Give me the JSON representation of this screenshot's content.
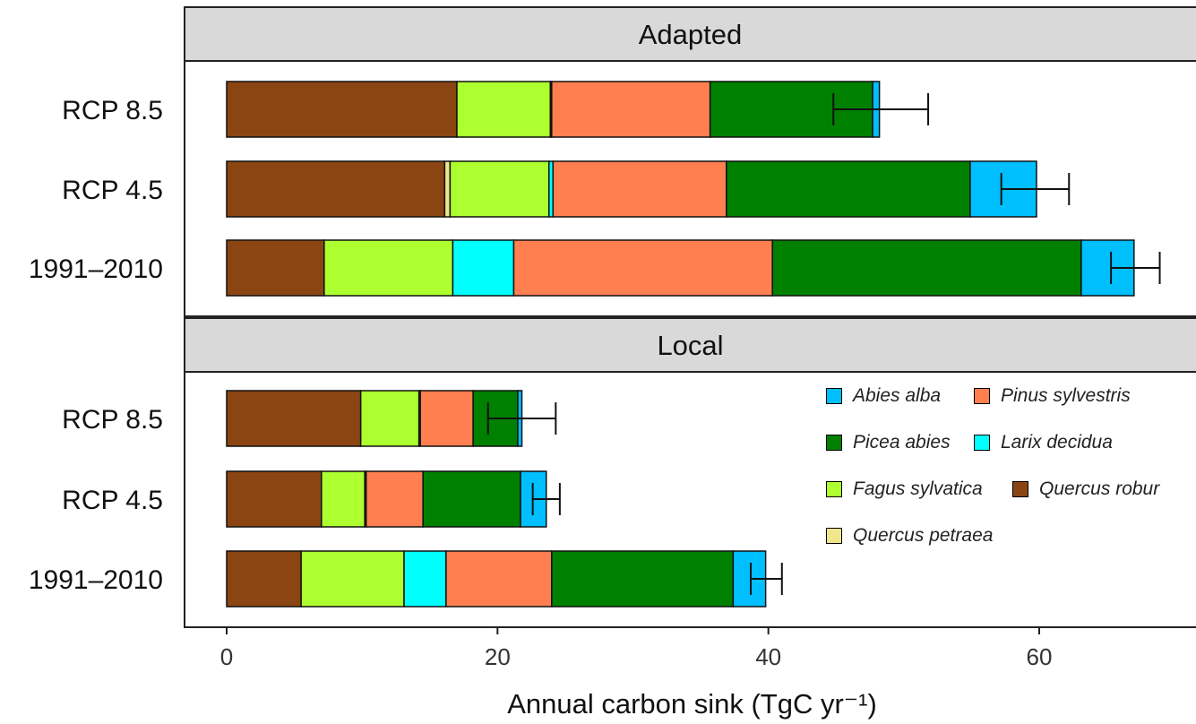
{
  "chart_data": {
    "type": "bar",
    "orientation": "horizontal",
    "stacked": true,
    "xlabel": "Annual carbon sink (TgC yr⁻¹)",
    "xlim": [
      -3,
      71
    ],
    "xticks": [
      0,
      20,
      40,
      60
    ],
    "grid": false,
    "legend_position": "right, inside lower panel",
    "species": [
      {
        "name": "Quercus robur",
        "color": "#8B4513"
      },
      {
        "name": "Quercus petraea",
        "color": "#F0E68C"
      },
      {
        "name": "Fagus sylvatica",
        "color": "#ADFF2F"
      },
      {
        "name": "Larix decidua",
        "color": "#00FFFF"
      },
      {
        "name": "Pinus sylvestris",
        "color": "#FF7F50"
      },
      {
        "name": "Picea abies",
        "color": "#008000"
      },
      {
        "name": "Abies alba",
        "color": "#00BFFF"
      }
    ],
    "legend_order": [
      "Abies alba",
      "Pinus sylvestris",
      "Picea abies",
      "Larix decidua",
      "Fagus sylvatica",
      "Quercus robur",
      "Quercus petraea"
    ],
    "panels": [
      {
        "title": "Adapted",
        "bars": [
          {
            "label": "RCP 8.5",
            "segments": {
              "Quercus robur": 17.0,
              "Quercus petraea": 0.0,
              "Fagus sylvatica": 6.9,
              "Larix decidua": 0.1,
              "Pinus sylvestris": 11.7,
              "Picea abies": 12.0,
              "Abies alba": 0.5
            },
            "total": 48.2,
            "error": [
              44.8,
              51.8
            ]
          },
          {
            "label": "RCP 4.5",
            "segments": {
              "Quercus robur": 16.1,
              "Quercus petraea": 0.4,
              "Fagus sylvatica": 7.3,
              "Larix decidua": 0.3,
              "Pinus sylvestris": 12.8,
              "Picea abies": 18.0,
              "Abies alba": 4.9
            },
            "total": 59.8,
            "error": [
              57.2,
              62.2
            ]
          },
          {
            "label": "1991–2010",
            "segments": {
              "Quercus robur": 7.2,
              "Quercus petraea": 0.0,
              "Fagus sylvatica": 9.5,
              "Larix decidua": 4.5,
              "Pinus sylvestris": 19.1,
              "Picea abies": 22.8,
              "Abies alba": 3.9
            },
            "total": 67.0,
            "error": [
              65.3,
              68.9
            ]
          }
        ]
      },
      {
        "title": "Local",
        "bars": [
          {
            "label": "RCP 8.5",
            "segments": {
              "Quercus robur": 9.9,
              "Quercus petraea": 0.0,
              "Fagus sylvatica": 4.3,
              "Larix decidua": 0.1,
              "Pinus sylvestris": 3.9,
              "Picea abies": 3.3,
              "Abies alba": 0.3
            },
            "total": 21.8,
            "error": [
              19.3,
              24.3
            ]
          },
          {
            "label": "RCP 4.5",
            "segments": {
              "Quercus robur": 7.0,
              "Quercus petraea": 0.0,
              "Fagus sylvatica": 3.2,
              "Larix decidua": 0.1,
              "Pinus sylvestris": 4.2,
              "Picea abies": 7.2,
              "Abies alba": 1.9
            },
            "total": 23.6,
            "error": [
              22.6,
              24.6
            ]
          },
          {
            "label": "1991–2010",
            "segments": {
              "Quercus robur": 5.5,
              "Quercus petraea": 0.0,
              "Fagus sylvatica": 7.6,
              "Larix decidua": 3.1,
              "Pinus sylvestris": 7.8,
              "Picea abies": 13.4,
              "Abies alba": 2.4
            },
            "total": 39.8,
            "error": [
              38.7,
              41.0
            ]
          }
        ]
      }
    ]
  }
}
